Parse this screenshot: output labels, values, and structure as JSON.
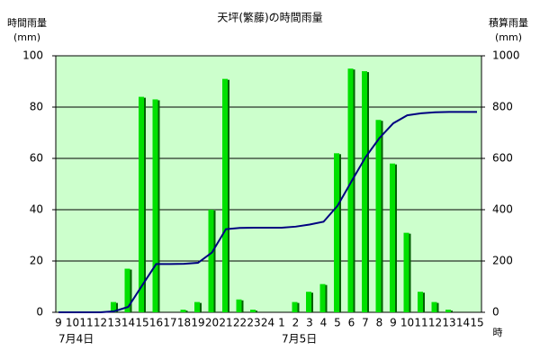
{
  "chart_data": {
    "type": "bar",
    "title": "天坪(繁藤)の時間雨量",
    "y_label": "時間雨量",
    "y_unit": "(mm)",
    "y2_label": "積算雨量",
    "y2_unit": "(mm)",
    "x_unit": "時",
    "categories": [
      "9",
      "10",
      "11",
      "12",
      "13",
      "14",
      "15",
      "16",
      "17",
      "18",
      "19",
      "20",
      "21",
      "22",
      "23",
      "24",
      "1",
      "2",
      "3",
      "4",
      "5",
      "6",
      "7",
      "8",
      "9",
      "10",
      "11",
      "12",
      "13",
      "14",
      "15"
    ],
    "x_groups": [
      "7月4日",
      null,
      null,
      null,
      null,
      null,
      null,
      null,
      null,
      null,
      null,
      null,
      null,
      null,
      null,
      null,
      "7月5日",
      null,
      null,
      null,
      null,
      null,
      null,
      null,
      null,
      null,
      null,
      null,
      null,
      null,
      null
    ],
    "series": [
      {
        "type": "bar",
        "color": "#00e000",
        "values": [
          0,
          0,
          0,
          0,
          4,
          17,
          84,
          83,
          0,
          1,
          4,
          40,
          91,
          5,
          1,
          0,
          0,
          4,
          8,
          11,
          62,
          95,
          94,
          75,
          58,
          31,
          8,
          4,
          1,
          0,
          0
        ]
      },
      {
        "type": "line",
        "axis": "y2",
        "color": "#000080",
        "values": [
          0,
          0,
          0,
          0,
          4,
          21,
          105,
          188,
          188,
          189,
          193,
          233,
          324,
          329,
          330,
          330,
          330,
          334,
          342,
          353,
          415,
          510,
          604,
          679,
          737,
          768,
          776,
          780,
          781,
          781,
          781
        ]
      }
    ],
    "ylim": [
      0,
      100
    ],
    "yticks": [
      0,
      20,
      40,
      60,
      80,
      100
    ],
    "y2lim": [
      0,
      1000
    ],
    "y2ticks": [
      0,
      200,
      400,
      600,
      800,
      1000
    ],
    "grid": true,
    "plot_background": "#ccffcc"
  }
}
